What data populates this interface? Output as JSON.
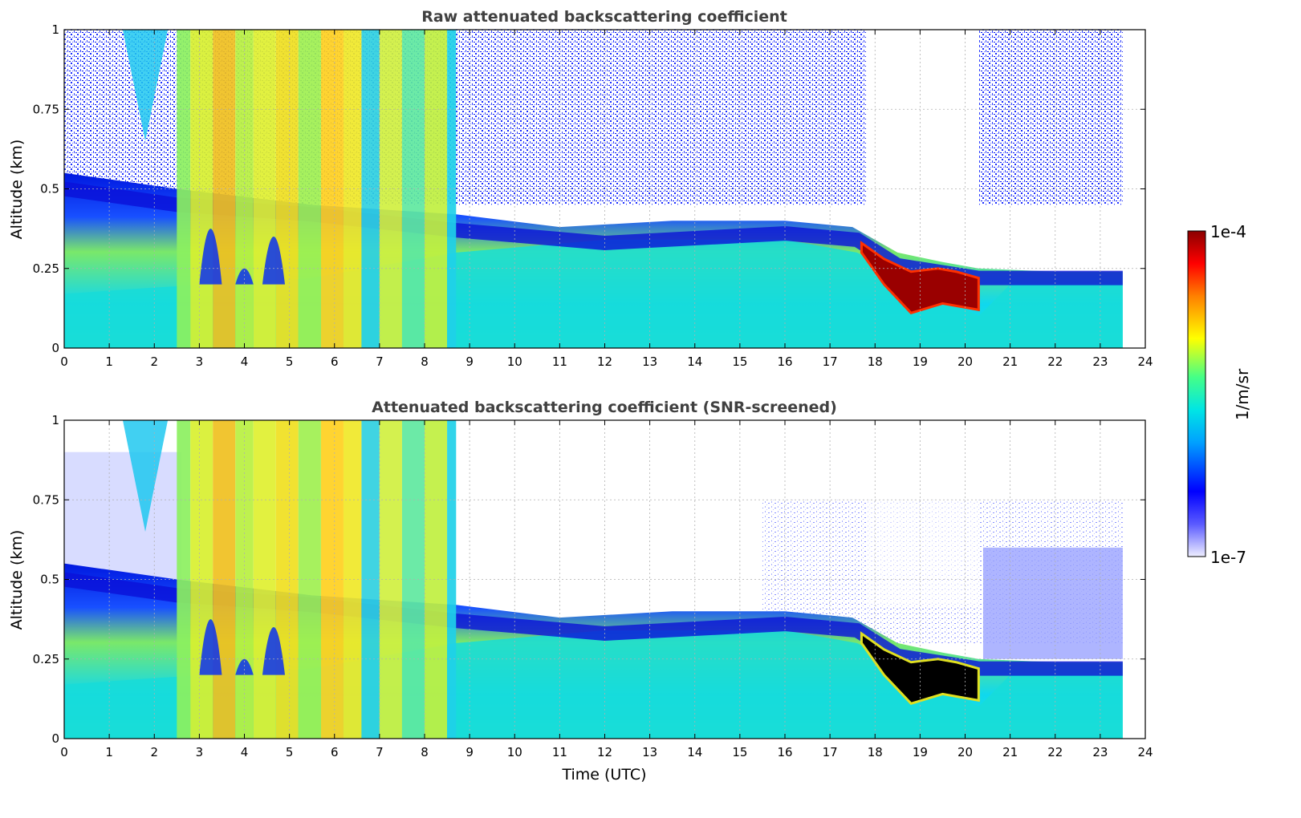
{
  "chart_data": [
    {
      "type": "heatmap",
      "title": "Raw attenuated backscattering coefficient",
      "xlabel": "",
      "ylabel": "Altitude (km)",
      "xlim": [
        0,
        24
      ],
      "ylim": [
        0,
        1
      ],
      "xticks": [
        "0",
        "1",
        "2",
        "3",
        "4",
        "5",
        "6",
        "7",
        "8",
        "9",
        "10",
        "11",
        "12",
        "13",
        "14",
        "15",
        "16",
        "17",
        "18",
        "19",
        "20",
        "21",
        "22",
        "23",
        "24"
      ],
      "yticks": [
        "0",
        "0.25",
        "0.5",
        "0.75",
        "1"
      ],
      "grid": true,
      "data_extent_hours": [
        0,
        23.5
      ],
      "color_scale": "log",
      "features": [
        {
          "name": "low fog/cloud layers",
          "time": [
            2.5,
            8.7
          ],
          "altitude": [
            0,
            1
          ],
          "level": "high"
        },
        {
          "name": "boundary layer top",
          "time": [
            8.7,
            17.5
          ],
          "altitude_top": 0.35
        },
        {
          "name": "dense fog layer",
          "time": [
            17.7,
            20.3
          ],
          "altitude": [
            0.1,
            0.32
          ],
          "level": "saturated"
        }
      ]
    },
    {
      "type": "heatmap",
      "title": "Attenuated backscattering coefficient (SNR-screened)",
      "xlabel": "Time (UTC)",
      "ylabel": "Altitude (km)",
      "xlim": [
        0,
        24
      ],
      "ylim": [
        0,
        1
      ],
      "xticks": [
        "0",
        "1",
        "2",
        "3",
        "4",
        "5",
        "6",
        "7",
        "8",
        "9",
        "10",
        "11",
        "12",
        "13",
        "14",
        "15",
        "16",
        "17",
        "18",
        "19",
        "20",
        "21",
        "22",
        "23",
        "24"
      ],
      "yticks": [
        "0",
        "0.25",
        "0.5",
        "0.75",
        "1"
      ],
      "grid": true,
      "data_extent_hours": [
        0,
        23.5
      ],
      "color_scale": "log",
      "features": [
        {
          "name": "low fog/cloud layers",
          "time": [
            2.5,
            8.7
          ],
          "altitude": [
            0,
            1
          ],
          "level": "high"
        },
        {
          "name": "boundary layer top",
          "time": [
            8.7,
            17.5
          ],
          "altitude_top": 0.35
        },
        {
          "name": "dense fog layer (screened black)",
          "time": [
            17.7,
            20.3
          ],
          "altitude": [
            0.1,
            0.32
          ],
          "level": "screened"
        }
      ]
    }
  ],
  "colorbar": {
    "label": "1/m/sr",
    "max_label": "1e-4",
    "min_label": "1e-7",
    "colormap": "jet-like",
    "colors": [
      "#e6e6fa",
      "#0000ff",
      "#00c8ff",
      "#00ffcc",
      "#66ff33",
      "#ffff00",
      "#ff8000",
      "#ff0000",
      "#8b0000"
    ]
  }
}
